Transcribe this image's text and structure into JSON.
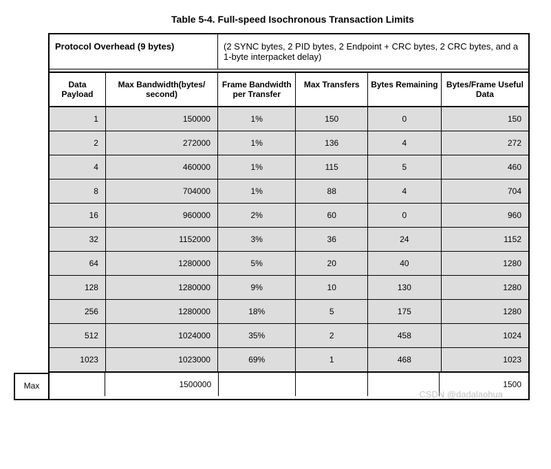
{
  "title": "Table 5-4.  Full-speed Isochronous Transaction Limits",
  "top_left": "Protocol Overhead (9 bytes)",
  "top_right": "(2 SYNC bytes, 2 PID bytes, 2 Endpoint + CRC bytes, 2 CRC bytes, and a 1-byte interpacket delay)",
  "columns": {
    "payload": "Data Payload",
    "bandwidth": "Max Bandwidth(bytes/ second)",
    "frame": "Frame Bandwidth per Transfer",
    "max_transfers": "Max Transfers",
    "remaining": "Bytes Remaining",
    "useful": "Bytes/Frame Useful Data"
  },
  "rows": [
    {
      "payload": "1",
      "bandwidth": "150000",
      "frame": "1%",
      "max": "150",
      "remain": "0",
      "useful": "150"
    },
    {
      "payload": "2",
      "bandwidth": "272000",
      "frame": "1%",
      "max": "136",
      "remain": "4",
      "useful": "272"
    },
    {
      "payload": "4",
      "bandwidth": "460000",
      "frame": "1%",
      "max": "115",
      "remain": "5",
      "useful": "460"
    },
    {
      "payload": "8",
      "bandwidth": "704000",
      "frame": "1%",
      "max": "88",
      "remain": "4",
      "useful": "704"
    },
    {
      "payload": "16",
      "bandwidth": "960000",
      "frame": "2%",
      "max": "60",
      "remain": "0",
      "useful": "960"
    },
    {
      "payload": "32",
      "bandwidth": "1152000",
      "frame": "3%",
      "max": "36",
      "remain": "24",
      "useful": "1152"
    },
    {
      "payload": "64",
      "bandwidth": "1280000",
      "frame": "5%",
      "max": "20",
      "remain": "40",
      "useful": "1280"
    },
    {
      "payload": "128",
      "bandwidth": "1280000",
      "frame": "9%",
      "max": "10",
      "remain": "130",
      "useful": "1280"
    },
    {
      "payload": "256",
      "bandwidth": "1280000",
      "frame": "18%",
      "max": "5",
      "remain": "175",
      "useful": "1280"
    },
    {
      "payload": "512",
      "bandwidth": "1024000",
      "frame": "35%",
      "max": "2",
      "remain": "458",
      "useful": "1024"
    },
    {
      "payload": "1023",
      "bandwidth": "1023000",
      "frame": "69%",
      "max": "1",
      "remain": "468",
      "useful": "1023"
    }
  ],
  "max_row": {
    "label": "Max",
    "payload": "",
    "bandwidth": "1500000",
    "frame": "",
    "max": "",
    "remain": "",
    "useful": "1500"
  },
  "watermark": "CSDN @dadalaohua",
  "styling": {
    "type": "table",
    "shaded_row_color": "#dddddd",
    "border_color": "#000000",
    "background_color": "#ffffff",
    "title_fontsize": 14,
    "header_fontsize": 12,
    "cell_fontsize": 12,
    "column_widths": {
      "payload": 75,
      "bandwidth": 170,
      "frame": 115,
      "max_transfers": 105,
      "remaining": 105,
      "useful": 130
    },
    "column_align": {
      "payload": "right",
      "bandwidth": "right",
      "frame": "center",
      "max_transfers": "center",
      "remaining": "center",
      "useful": "right"
    }
  }
}
